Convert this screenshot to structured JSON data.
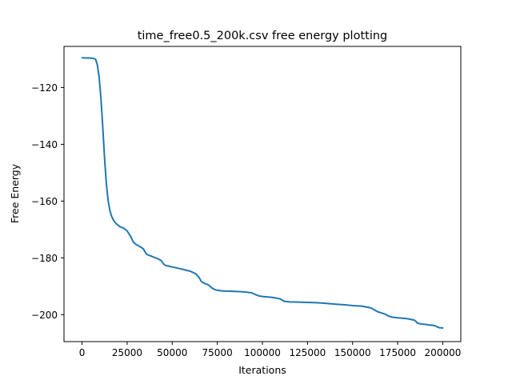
{
  "chart_data": {
    "type": "line",
    "title": "time_free0.5_200k.csv free energy plotting",
    "xlabel": "Iterations",
    "ylabel": "Free Energy",
    "xlim": [
      -10000,
      210000
    ],
    "ylim": [
      -209.5,
      -105.5
    ],
    "xticks": [
      0,
      25000,
      50000,
      75000,
      100000,
      125000,
      150000,
      175000,
      200000
    ],
    "xtick_labels": [
      "0",
      "25000",
      "50000",
      "75000",
      "100000",
      "125000",
      "150000",
      "175000",
      "200000"
    ],
    "yticks": [
      -120,
      -140,
      -160,
      -180,
      -200
    ],
    "ytick_labels": [
      "−120",
      "−140",
      "−160",
      "−180",
      "−200"
    ],
    "grid": false,
    "series": [
      {
        "color": "#1f77b4",
        "x": [
          0,
          2000,
          4000,
          6000,
          7500,
          8500,
          9500,
          10500,
          11500,
          12500,
          13500,
          14500,
          15500,
          16500,
          17500,
          19000,
          21000,
          23000,
          25000,
          27000,
          28500,
          30000,
          32000,
          34000,
          35000,
          36000,
          38000,
          40000,
          42000,
          44000,
          45000,
          46000,
          48000,
          50000,
          55000,
          60000,
          63000,
          65000,
          66000,
          67000,
          68000,
          70000,
          72000,
          74000,
          75000,
          77000,
          80000,
          85000,
          90000,
          94000,
          96000,
          98000,
          100000,
          105000,
          108000,
          110000,
          112000,
          115000,
          120000,
          125000,
          130000,
          135000,
          140000,
          145000,
          150000,
          155000,
          160000,
          162000,
          164000,
          166000,
          168000,
          170000,
          172000,
          175000,
          180000,
          184000,
          185000,
          186000,
          188000,
          190000,
          192000,
          195000,
          196000,
          197000,
          198000,
          200000
        ],
        "y": [
          -109.5,
          -109.6,
          -109.6,
          -109.7,
          -110.0,
          -112.0,
          -116.5,
          -124.0,
          -134.0,
          -145.0,
          -154.0,
          -160.0,
          -163.5,
          -165.5,
          -166.8,
          -168.0,
          -169.0,
          -169.5,
          -170.5,
          -172.5,
          -174.5,
          -175.3,
          -176.0,
          -176.8,
          -178.0,
          -178.8,
          -179.3,
          -179.8,
          -180.3,
          -181.0,
          -182.0,
          -182.6,
          -182.9,
          -183.2,
          -183.9,
          -184.7,
          -185.6,
          -187.0,
          -188.2,
          -188.7,
          -189.0,
          -189.5,
          -190.6,
          -191.3,
          -191.4,
          -191.6,
          -191.7,
          -191.8,
          -192.0,
          -192.3,
          -192.9,
          -193.4,
          -193.6,
          -193.9,
          -194.2,
          -194.5,
          -195.3,
          -195.5,
          -195.6,
          -195.7,
          -195.8,
          -196.0,
          -196.3,
          -196.5,
          -196.8,
          -197.0,
          -197.6,
          -198.3,
          -199.0,
          -199.4,
          -199.8,
          -200.5,
          -200.9,
          -201.1,
          -201.4,
          -201.9,
          -202.3,
          -203.0,
          -203.3,
          -203.4,
          -203.6,
          -203.8,
          -204.0,
          -204.3,
          -204.6,
          -204.7
        ]
      }
    ]
  }
}
